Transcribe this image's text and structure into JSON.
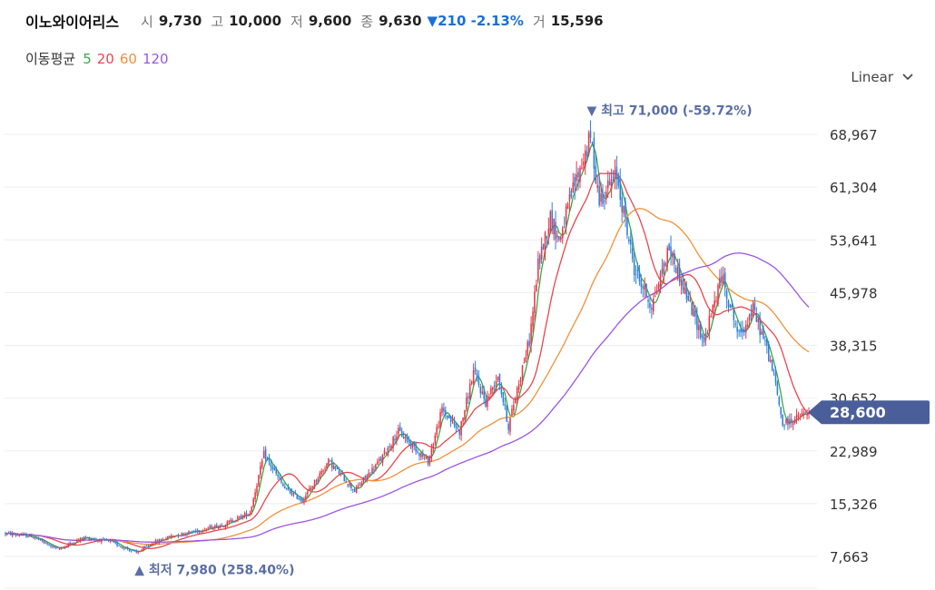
{
  "header": {
    "stock_name": "이노와이어리스",
    "open_label": "시",
    "open": "9,730",
    "high_label": "고",
    "high": "10,000",
    "low_label": "저",
    "low": "9,600",
    "close_label": "종",
    "close": "9,630",
    "change": "▼210 -2.13%",
    "volume_label": "거",
    "volume": "15,596"
  },
  "ma_legend": {
    "label": "이동평균",
    "items": [
      {
        "period": "5",
        "color": "#3aa845"
      },
      {
        "period": "20",
        "color": "#e8464e"
      },
      {
        "period": "60",
        "color": "#f0913a"
      },
      {
        "period": "120",
        "color": "#9b55e6"
      }
    ]
  },
  "scale_select": {
    "value": "Linear",
    "icon": "chevron-down-icon"
  },
  "colors": {
    "up": "#e8364a",
    "down": "#2f7fd8",
    "current_price_bg": "#4a5f9a"
  },
  "current_price": "28,600",
  "chart_data": {
    "type": "candlestick",
    "y_ticks": [
      "68,967",
      "61,304",
      "53,641",
      "45,978",
      "38,315",
      "30,652",
      "22,989",
      "15,326",
      "7,663"
    ],
    "y_tick_values": [
      68967,
      61304,
      53641,
      45978,
      38315,
      30652,
      22989,
      15326,
      7663
    ],
    "ylim": [
      6600,
      75000
    ],
    "grid": true,
    "current_price": 28600,
    "high_annotation": {
      "text": "최고 71,000 (-59.72%)",
      "value": 71000
    },
    "low_annotation": {
      "text": "최저 7,980 (258.40%)",
      "value": 7980
    },
    "keypoints": [
      [
        0,
        11000
      ],
      [
        15,
        10600
      ],
      [
        30,
        8700
      ],
      [
        45,
        10400
      ],
      [
        60,
        9800
      ],
      [
        75,
        8200
      ],
      [
        85,
        9700
      ],
      [
        95,
        10600
      ],
      [
        110,
        11400
      ],
      [
        125,
        12300
      ],
      [
        140,
        14000
      ],
      [
        148,
        22500
      ],
      [
        160,
        17500
      ],
      [
        170,
        15800
      ],
      [
        185,
        21500
      ],
      [
        200,
        17200
      ],
      [
        215,
        21800
      ],
      [
        225,
        25800
      ],
      [
        235,
        23300
      ],
      [
        242,
        21400
      ],
      [
        250,
        29000
      ],
      [
        260,
        25800
      ],
      [
        268,
        34500
      ],
      [
        275,
        30000
      ],
      [
        282,
        34000
      ],
      [
        288,
        26500
      ],
      [
        295,
        34200
      ],
      [
        300,
        39000
      ],
      [
        305,
        50000
      ],
      [
        312,
        57000
      ],
      [
        317,
        53500
      ],
      [
        325,
        61000
      ],
      [
        335,
        68500
      ],
      [
        340,
        59500
      ],
      [
        350,
        63000
      ],
      [
        360,
        49500
      ],
      [
        370,
        44000
      ],
      [
        380,
        52500
      ],
      [
        390,
        45500
      ],
      [
        400,
        38800
      ],
      [
        410,
        48500
      ],
      [
        420,
        39600
      ],
      [
        428,
        43500
      ],
      [
        435,
        38600
      ],
      [
        440,
        34000
      ],
      [
        445,
        26800
      ],
      [
        460,
        28600
      ]
    ],
    "ma_periods": [
      5,
      20,
      60,
      120
    ]
  }
}
